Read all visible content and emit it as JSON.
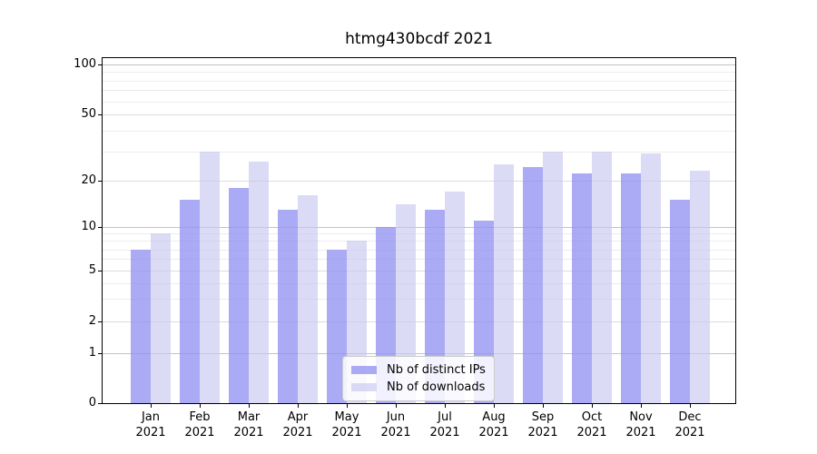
{
  "chart_data": {
    "type": "bar",
    "title": "htmg430bcdf 2021",
    "categories": [
      "Jan 2021",
      "Feb 2021",
      "Mar 2021",
      "Apr 2021",
      "May 2021",
      "Jun 2021",
      "Jul 2021",
      "Aug 2021",
      "Sep 2021",
      "Oct 2021",
      "Nov 2021",
      "Dec 2021"
    ],
    "series": [
      {
        "name": "Nb of distinct IPs",
        "color": "#9292f2",
        "values": [
          7,
          15,
          18,
          13,
          7,
          10,
          13,
          11,
          24,
          22,
          22,
          15
        ]
      },
      {
        "name": "Nb of downloads",
        "color": "#c8c8f0",
        "values": [
          9,
          30,
          26,
          16,
          8,
          14,
          17,
          25,
          30,
          30,
          29,
          23
        ]
      }
    ],
    "y_axis": {
      "ticks": [
        0,
        1,
        2,
        5,
        10,
        20,
        50,
        100
      ],
      "scale": "log-like",
      "range": [
        0,
        110
      ]
    },
    "x_axis": {
      "year_line": "2021"
    },
    "legend": {
      "position": "lower center"
    },
    "grid": true
  }
}
